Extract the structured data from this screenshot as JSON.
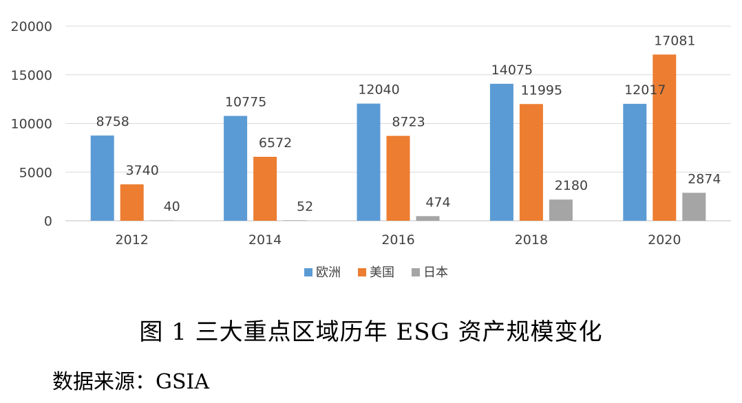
{
  "chart_data": {
    "type": "bar",
    "categories": [
      "2012",
      "2014",
      "2016",
      "2018",
      "2020"
    ],
    "series": [
      {
        "name": "欧洲",
        "values": [
          8758,
          10775,
          12040,
          14075,
          12017
        ],
        "color": "#5B9BD5"
      },
      {
        "name": "美国",
        "values": [
          3740,
          6572,
          8723,
          11995,
          17081
        ],
        "color": "#ED7D31"
      },
      {
        "name": "日本",
        "values": [
          40,
          52,
          474,
          2180,
          2874
        ],
        "color": "#A5A5A5"
      }
    ],
    "ylim": [
      0,
      20000
    ],
    "yticks": [
      "0",
      "5000",
      "10000",
      "15000",
      "20000"
    ],
    "grid": true,
    "legend_position": "bottom",
    "title": "",
    "xlabel": "",
    "ylabel": ""
  },
  "caption": "图 1 三大重点区域历年 ESG 资产规模变化",
  "source": "数据来源：GSIA"
}
